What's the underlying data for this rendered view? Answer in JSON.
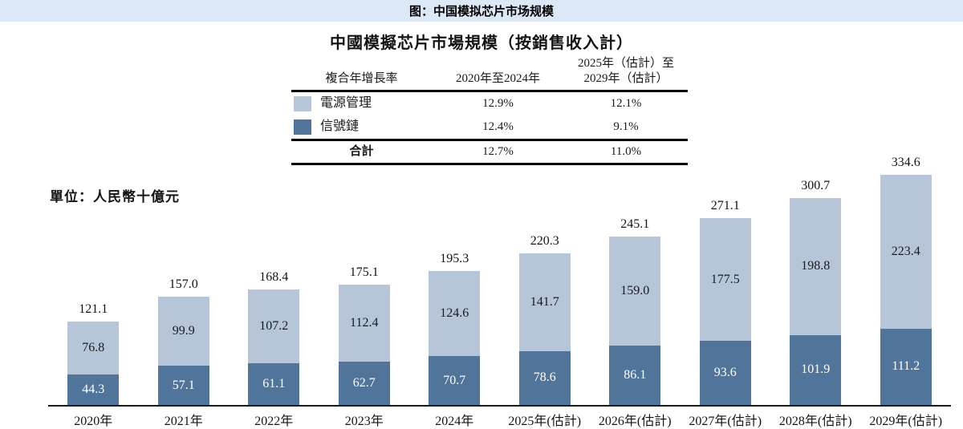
{
  "page": {
    "header_title": "图：中国模拟芯片市场规模"
  },
  "figure": {
    "title": "中國模擬芯片市場規模（按銷售收入計）",
    "unit_label": "單位：人民幣十億元"
  },
  "cagr_table": {
    "header_metric": "複合年增長率",
    "header_period1": "2020年至2024年",
    "header_period2_line1": "2025年（估計）至",
    "header_period2_line2": "2029年（估計）",
    "rows": [
      {
        "label": "電源管理",
        "series_key": "power",
        "cagr_2020_2024": "12.9%",
        "cagr_2025_2029": "12.1%"
      },
      {
        "label": "信號鏈",
        "series_key": "signal",
        "cagr_2020_2024": "12.4%",
        "cagr_2025_2029": "9.1%"
      }
    ],
    "total_row": {
      "label": "合計",
      "cagr_2020_2024": "12.7%",
      "cagr_2025_2029": "11.0%"
    }
  },
  "chart_data": {
    "type": "bar",
    "stacked": true,
    "title": "中國模擬芯片市場規模（按銷售收入計）",
    "unit": "人民幣十億元",
    "grid": false,
    "legend_position": "table-top-left",
    "ylim": [
      0,
      340
    ],
    "categories": [
      "2020年",
      "2021年",
      "2022年",
      "2023年",
      "2024年",
      "2025年(估計)",
      "2026年(估計)",
      "2027年(估計)",
      "2028年(估計)",
      "2029年(估計)"
    ],
    "series": [
      {
        "name": "電源管理",
        "color_key": "power",
        "values": [
          76.8,
          99.9,
          107.2,
          112.4,
          124.6,
          141.7,
          159.0,
          177.5,
          198.8,
          223.4
        ]
      },
      {
        "name": "信號鏈",
        "color_key": "signal",
        "values": [
          44.3,
          57.1,
          61.1,
          62.7,
          70.7,
          78.6,
          86.1,
          93.6,
          101.9,
          111.2
        ]
      }
    ],
    "totals": [
      121.1,
      157.0,
      168.4,
      175.1,
      195.3,
      220.3,
      245.1,
      271.1,
      300.7,
      334.6
    ]
  },
  "colors": {
    "power": "#b7c5d8",
    "signal": "#51749a",
    "header_strip_bg": "#dce8f5",
    "axis": "#1b1b1b",
    "text": "#141414",
    "label_on_dark": "#ffffff"
  }
}
